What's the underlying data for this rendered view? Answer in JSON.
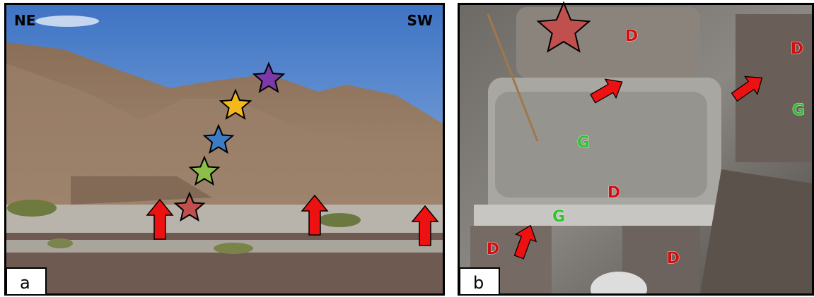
{
  "panels": [
    {
      "label": "a",
      "direction_left": "NE",
      "direction_right": "SW"
    },
    {
      "label": "b",
      "annotations": [
        "D",
        "D",
        "G",
        "G",
        "D",
        "G",
        "D",
        "D"
      ]
    }
  ]
}
